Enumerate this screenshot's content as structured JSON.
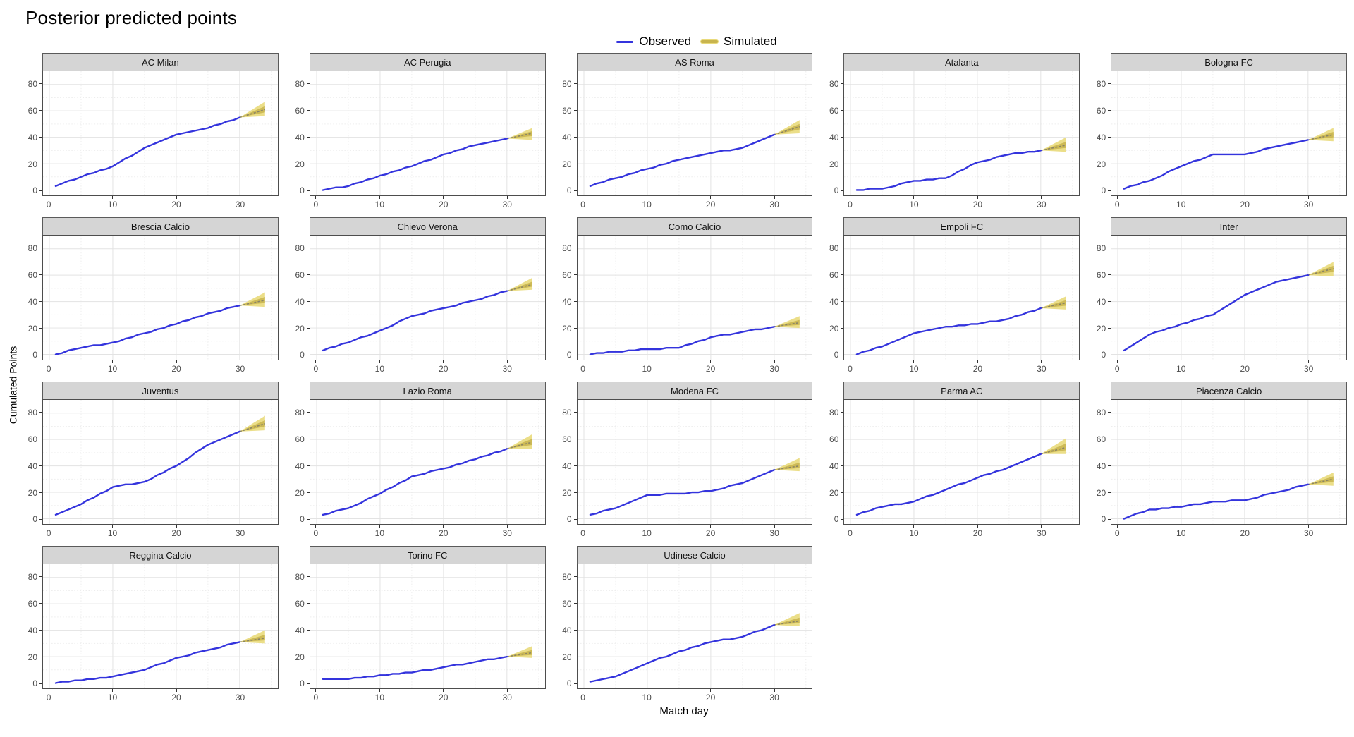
{
  "page": {
    "title": "Posterior predicted points"
  },
  "legend": {
    "observed_label": "Observed",
    "simulated_label": "Simulated"
  },
  "colors": {
    "observed": "#3434DD",
    "simulated_outer_band": "#E9DA7B",
    "simulated_inner_band": "#C8B44E",
    "simulated_median": "#8A8466",
    "strip_background": "#D5D5D5",
    "grid_major": "#E3E3E3",
    "grid_minor": "#EDEDED",
    "tick_text": "#4D4D4D"
  },
  "chart_data": {
    "type": "line",
    "title": "Posterior predicted points",
    "xlabel": "Match day",
    "ylabel": "Cumulated Points",
    "x_ticks": [
      0,
      10,
      20,
      30
    ],
    "y_ticks": [
      0,
      20,
      40,
      60,
      80
    ],
    "xlim": [
      0,
      35
    ],
    "ylim": [
      0,
      88
    ],
    "grid": true,
    "legend_position": "top-center",
    "series_legend": [
      "Observed",
      "Simulated"
    ],
    "observed_waypoint_days": [
      1,
      5,
      10,
      15,
      20,
      25,
      30
    ],
    "simulated_span_days": [
      30,
      34
    ],
    "facets": [
      {
        "team": "AC Milan",
        "observed": [
          3,
          10,
          18,
          32,
          42,
          47,
          55
        ],
        "simulated": {
          "start": 55,
          "low": 56,
          "mid": 61,
          "high": 67
        }
      },
      {
        "team": "AC Perugia",
        "observed": [
          0,
          3,
          11,
          18,
          27,
          34,
          39
        ],
        "simulated": {
          "start": 39,
          "low": 38,
          "mid": 43,
          "high": 47
        }
      },
      {
        "team": "AS Roma",
        "observed": [
          3,
          9,
          16,
          23,
          28,
          32,
          42
        ],
        "simulated": {
          "start": 42,
          "low": 43,
          "mid": 48,
          "high": 53
        }
      },
      {
        "team": "Atalanta",
        "observed": [
          0,
          1,
          7,
          9,
          21,
          27,
          30
        ],
        "simulated": {
          "start": 30,
          "low": 29,
          "mid": 34,
          "high": 40
        }
      },
      {
        "team": "Bologna FC",
        "observed": [
          1,
          7,
          18,
          27,
          27,
          33,
          38
        ],
        "simulated": {
          "start": 38,
          "low": 37,
          "mid": 42,
          "high": 47
        }
      },
      {
        "team": "Brescia Calcio",
        "observed": [
          0,
          5,
          9,
          16,
          23,
          31,
          37
        ],
        "simulated": {
          "start": 37,
          "low": 36,
          "mid": 41,
          "high": 47
        }
      },
      {
        "team": "Chievo Verona",
        "observed": [
          3,
          9,
          18,
          29,
          35,
          41,
          48
        ],
        "simulated": {
          "start": 48,
          "low": 49,
          "mid": 53,
          "high": 58
        }
      },
      {
        "team": "Como Calcio",
        "observed": [
          0,
          2,
          4,
          5,
          13,
          17,
          21
        ],
        "simulated": {
          "start": 21,
          "low": 20,
          "mid": 24,
          "high": 29
        }
      },
      {
        "team": "Empoli FC",
        "observed": [
          0,
          6,
          16,
          21,
          23,
          27,
          35
        ],
        "simulated": {
          "start": 35,
          "low": 34,
          "mid": 39,
          "high": 44
        }
      },
      {
        "team": "Inter",
        "observed": [
          3,
          15,
          23,
          30,
          45,
          55,
          60
        ],
        "simulated": {
          "start": 60,
          "low": 59,
          "mid": 65,
          "high": 70
        }
      },
      {
        "team": "Juventus",
        "observed": [
          3,
          11,
          24,
          28,
          40,
          56,
          66
        ],
        "simulated": {
          "start": 66,
          "low": 67,
          "mid": 72,
          "high": 78
        }
      },
      {
        "team": "Lazio Roma",
        "observed": [
          3,
          8,
          19,
          32,
          38,
          45,
          53
        ],
        "simulated": {
          "start": 53,
          "low": 53,
          "mid": 58,
          "high": 64
        }
      },
      {
        "team": "Modena FC",
        "observed": [
          3,
          8,
          18,
          19,
          21,
          27,
          37
        ],
        "simulated": {
          "start": 37,
          "low": 36,
          "mid": 40,
          "high": 46
        }
      },
      {
        "team": "Parma AC",
        "observed": [
          3,
          9,
          13,
          22,
          31,
          39,
          49
        ],
        "simulated": {
          "start": 49,
          "low": 49,
          "mid": 54,
          "high": 61
        }
      },
      {
        "team": "Piacenza Calcio",
        "observed": [
          0,
          7,
          9,
          13,
          14,
          20,
          26
        ],
        "simulated": {
          "start": 26,
          "low": 25,
          "mid": 30,
          "high": 35
        }
      },
      {
        "team": "Reggina Calcio",
        "observed": [
          0,
          2,
          5,
          10,
          19,
          25,
          31
        ],
        "simulated": {
          "start": 31,
          "low": 30,
          "mid": 34,
          "high": 40
        }
      },
      {
        "team": "Torino FC",
        "observed": [
          3,
          3,
          6,
          8,
          12,
          16,
          20
        ],
        "simulated": {
          "start": 20,
          "low": 19,
          "mid": 23,
          "high": 28
        }
      },
      {
        "team": "Udinese Calcio",
        "observed": [
          1,
          5,
          15,
          24,
          31,
          35,
          44
        ],
        "simulated": {
          "start": 44,
          "low": 43,
          "mid": 47,
          "high": 53
        }
      }
    ]
  }
}
